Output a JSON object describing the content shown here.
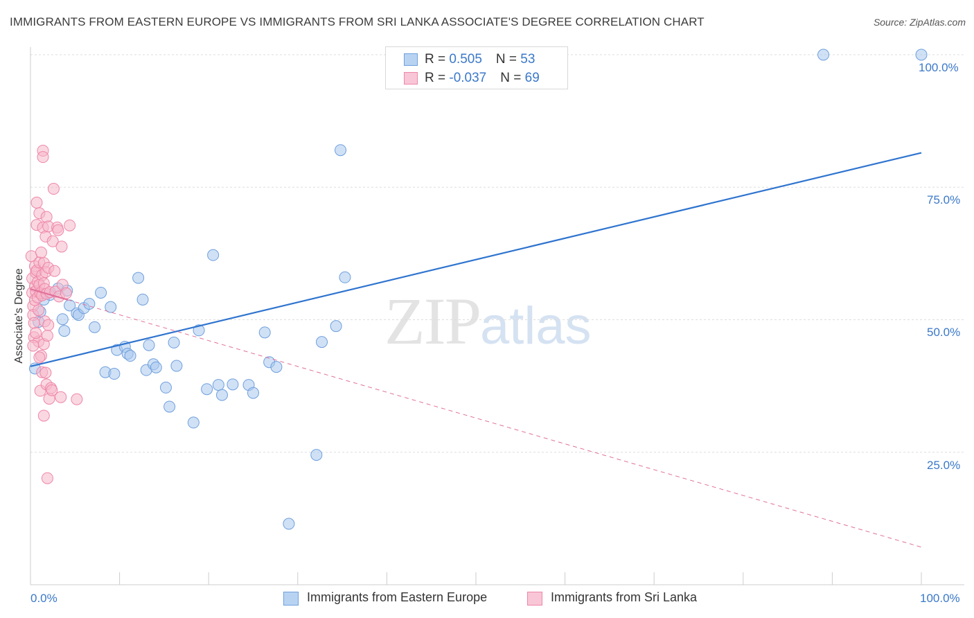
{
  "title": "IMMIGRANTS FROM EASTERN EUROPE VS IMMIGRANTS FROM SRI LANKA ASSOCIATE'S DEGREE CORRELATION CHART",
  "source": "Source: ZipAtlas.com",
  "watermark": {
    "zip": "ZIP",
    "atlas": "atlas"
  },
  "legend": {
    "row1": {
      "r_label": "R = ",
      "r_value": "0.505",
      "n_label": "N = ",
      "n_value": "53"
    },
    "row2": {
      "r_label": "R = ",
      "r_value": "-0.037",
      "n_label": "N = ",
      "n_value": "69"
    }
  },
  "colors": {
    "blue_fill": "#a9c8ee",
    "blue_stroke": "#6f9fdc",
    "blue_line": "#2f74cf",
    "pink_fill": "#f5b8cb",
    "pink_stroke": "#ee86a8",
    "pink_line": "#e0709a",
    "grid": "#dddddd",
    "axis_text": "#3a78c9"
  },
  "chart_data": {
    "type": "scatter",
    "title": "IMMIGRANTS FROM EASTERN EUROPE VS IMMIGRANTS FROM SRI LANKA ASSOCIATE'S DEGREE CORRELATION CHART",
    "xlabel": "",
    "ylabel": "Associate's Degree",
    "xlim": [
      0,
      100
    ],
    "ylim": [
      0,
      100
    ],
    "x_tick_labels": [
      "0.0%",
      "100.0%"
    ],
    "y_tick_labels": [
      "100.0%",
      "75.0%",
      "50.0%",
      "25.0%"
    ],
    "y_ticks": [
      100,
      75,
      50,
      25
    ],
    "legend_position": "top-center",
    "grid": true,
    "series": [
      {
        "name": "Immigrants from Eastern Europe",
        "color": "#a9c8ee",
        "r": 0.505,
        "n": 53,
        "trend": {
          "x": [
            0,
            100
          ],
          "y": [
            41.2,
            81.5
          ]
        },
        "points": [
          [
            0.5,
            40.8
          ],
          [
            0.9,
            49.6
          ],
          [
            1.1,
            51.5
          ],
          [
            1.5,
            53.8
          ],
          [
            2.2,
            54.7
          ],
          [
            3.1,
            55.9
          ],
          [
            3.6,
            50.1
          ],
          [
            3.8,
            47.9
          ],
          [
            4.1,
            55.5
          ],
          [
            4.4,
            52.7
          ],
          [
            5.2,
            51.2
          ],
          [
            5.4,
            50.9
          ],
          [
            6.0,
            52.2
          ],
          [
            6.6,
            53.0
          ],
          [
            7.2,
            48.6
          ],
          [
            7.9,
            55.1
          ],
          [
            8.4,
            40.1
          ],
          [
            9.0,
            52.4
          ],
          [
            9.4,
            39.8
          ],
          [
            9.7,
            44.3
          ],
          [
            10.6,
            44.9
          ],
          [
            10.9,
            43.6
          ],
          [
            11.2,
            43.2
          ],
          [
            12.1,
            57.9
          ],
          [
            12.6,
            53.8
          ],
          [
            13.0,
            40.5
          ],
          [
            13.3,
            45.2
          ],
          [
            13.8,
            41.6
          ],
          [
            14.1,
            41.0
          ],
          [
            15.2,
            37.2
          ],
          [
            16.1,
            45.7
          ],
          [
            16.4,
            41.3
          ],
          [
            15.6,
            33.6
          ],
          [
            18.3,
            30.6
          ],
          [
            18.9,
            48.0
          ],
          [
            19.8,
            36.9
          ],
          [
            20.5,
            62.2
          ],
          [
            21.1,
            37.7
          ],
          [
            21.5,
            35.8
          ],
          [
            22.7,
            37.8
          ],
          [
            24.5,
            37.7
          ],
          [
            25.0,
            36.2
          ],
          [
            26.3,
            47.6
          ],
          [
            26.8,
            42.0
          ],
          [
            27.6,
            41.1
          ],
          [
            29.0,
            11.5
          ],
          [
            32.1,
            24.5
          ],
          [
            32.7,
            45.8
          ],
          [
            34.3,
            48.8
          ],
          [
            34.8,
            82.0
          ],
          [
            35.3,
            58.0
          ],
          [
            89.0,
            100.0
          ],
          [
            100.0,
            100.0
          ]
        ]
      },
      {
        "name": "Immigrants from Sri Lanka",
        "color": "#f5b8cb",
        "r": -0.037,
        "n": 69,
        "trend": {
          "x": [
            0,
            100
          ],
          "y": [
            55.8,
            7.1
          ]
        },
        "trend_solid_end_x": 4.2,
        "points": [
          [
            0.1,
            62.0
          ],
          [
            0.2,
            57.8
          ],
          [
            0.2,
            55.1
          ],
          [
            0.3,
            52.6
          ],
          [
            0.3,
            50.9
          ],
          [
            0.4,
            49.4
          ],
          [
            0.4,
            46.7
          ],
          [
            0.5,
            60.1
          ],
          [
            0.5,
            56.3
          ],
          [
            0.5,
            53.7
          ],
          [
            0.6,
            58.9
          ],
          [
            0.6,
            55.4
          ],
          [
            0.7,
            72.1
          ],
          [
            0.7,
            67.9
          ],
          [
            0.7,
            59.3
          ],
          [
            0.8,
            57.1
          ],
          [
            0.8,
            54.2
          ],
          [
            0.9,
            51.8
          ],
          [
            0.9,
            45.9
          ],
          [
            1.0,
            70.1
          ],
          [
            1.0,
            60.8
          ],
          [
            1.0,
            56.6
          ],
          [
            1.1,
            55.0
          ],
          [
            1.1,
            36.6
          ],
          [
            1.2,
            43.2
          ],
          [
            1.2,
            62.7
          ],
          [
            1.3,
            58.4
          ],
          [
            1.3,
            54.6
          ],
          [
            1.3,
            40.1
          ],
          [
            1.4,
            81.9
          ],
          [
            1.4,
            80.7
          ],
          [
            1.4,
            67.4
          ],
          [
            1.5,
            60.7
          ],
          [
            1.5,
            56.9
          ],
          [
            1.5,
            45.4
          ],
          [
            1.5,
            31.9
          ],
          [
            1.6,
            55.8
          ],
          [
            1.6,
            49.7
          ],
          [
            1.7,
            65.7
          ],
          [
            1.7,
            59.0
          ],
          [
            1.7,
            40.0
          ],
          [
            1.8,
            69.4
          ],
          [
            1.8,
            54.9
          ],
          [
            1.8,
            37.8
          ],
          [
            1.9,
            47.0
          ],
          [
            1.9,
            20.1
          ],
          [
            2.0,
            67.6
          ],
          [
            2.0,
            59.8
          ],
          [
            2.0,
            49.0
          ],
          [
            2.1,
            35.1
          ],
          [
            2.2,
            55.2
          ],
          [
            2.3,
            37.1
          ],
          [
            2.4,
            36.7
          ],
          [
            2.5,
            64.8
          ],
          [
            2.6,
            74.7
          ],
          [
            2.7,
            59.2
          ],
          [
            2.8,
            55.3
          ],
          [
            3.0,
            67.4
          ],
          [
            3.1,
            66.9
          ],
          [
            3.2,
            54.4
          ],
          [
            3.4,
            35.4
          ],
          [
            3.5,
            63.8
          ],
          [
            3.6,
            56.6
          ],
          [
            4.0,
            55.0
          ],
          [
            4.4,
            67.8
          ],
          [
            5.2,
            35.0
          ],
          [
            0.3,
            45.1
          ],
          [
            0.6,
            47.5
          ],
          [
            1.0,
            42.9
          ]
        ]
      }
    ]
  },
  "bottom_legend": {
    "item1": "Immigrants from Eastern Europe",
    "item2": "Immigrants from Sri Lanka"
  }
}
